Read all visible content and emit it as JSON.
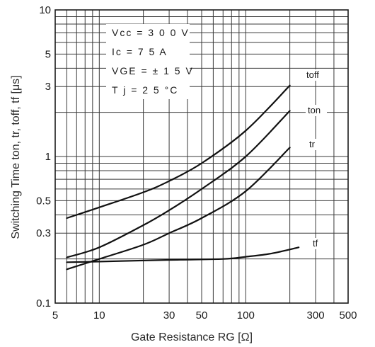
{
  "chart_data": {
    "type": "line",
    "title": "",
    "xlabel": "Gate Resistance RG [Ω]",
    "ylabel": "Switching Time ton, tr, toff, tf [μs]",
    "x_scale": "log",
    "y_scale": "log",
    "xlim": [
      5,
      500
    ],
    "ylim": [
      0.1,
      10
    ],
    "grid": true,
    "x_ticks": [
      5,
      10,
      30,
      50,
      100,
      300,
      500
    ],
    "x_tick_labels": [
      "5",
      "10",
      "30",
      "50",
      "100",
      "300",
      "500"
    ],
    "y_ticks": [
      0.1,
      0.3,
      0.5,
      1,
      3,
      5,
      10
    ],
    "y_tick_labels": [
      "0.1",
      "0.3",
      "0.5",
      "1",
      "3",
      "5",
      "10"
    ],
    "conditions": [
      "Vcc = 3 0 0 V",
      "Ic = 7 5 A",
      "VGE = ± 1 5 V",
      "T j = 2 5 °C"
    ],
    "series": [
      {
        "name": "toff",
        "x": [
          6,
          10,
          20,
          30,
          50,
          100,
          200
        ],
        "y": [
          0.38,
          0.45,
          0.57,
          0.68,
          0.9,
          1.5,
          3.05
        ]
      },
      {
        "name": "ton",
        "x": [
          6,
          10,
          20,
          30,
          50,
          100,
          200
        ],
        "y": [
          0.205,
          0.24,
          0.34,
          0.43,
          0.6,
          1.0,
          2.05
        ]
      },
      {
        "name": "tr",
        "x": [
          6,
          10,
          20,
          30,
          50,
          100,
          200
        ],
        "y": [
          0.17,
          0.2,
          0.25,
          0.3,
          0.38,
          0.58,
          1.15
        ]
      },
      {
        "name": "tf",
        "x": [
          6,
          10,
          30,
          70,
          100,
          150,
          230
        ],
        "y": [
          0.19,
          0.192,
          0.197,
          0.2,
          0.207,
          0.218,
          0.24
        ]
      }
    ]
  }
}
